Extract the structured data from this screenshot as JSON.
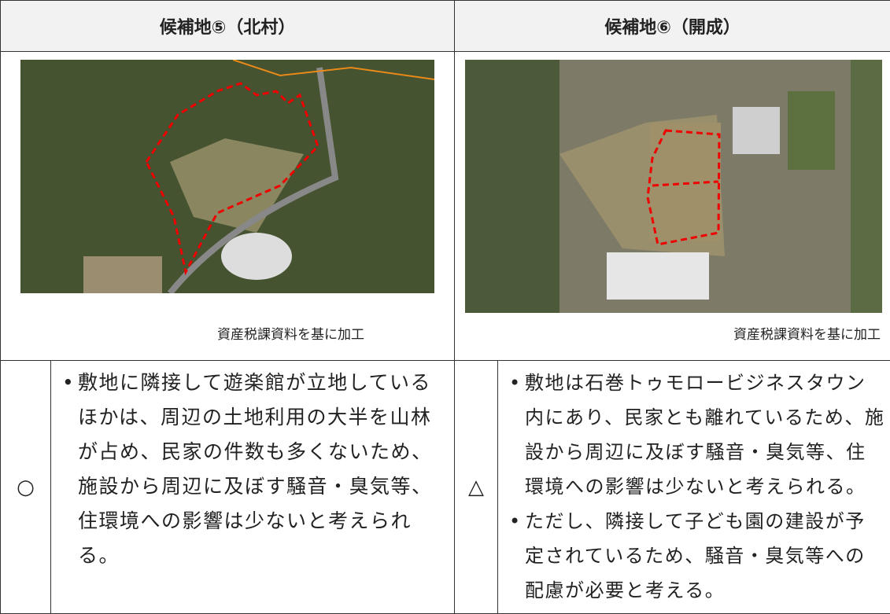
{
  "header": {
    "left": "候補地⑤（北村）",
    "right": "候補地⑥（開成）"
  },
  "captions": {
    "left": "資産税課資料を基に加工",
    "right": "資産税課資料を基に加工"
  },
  "left": {
    "rating": "○",
    "bullets": [
      "敷地に隣接して遊楽館が立地しているほかは、周辺の土地利用の大半を山林が占め、民家の件数も多くないため、施設から周辺に及ぼす騒音・臭気等、住環境への影響は少ないと考えられる。"
    ]
  },
  "right": {
    "rating": "△",
    "bullets": [
      "敷地は石巻トゥモロービジネスタウン内にあり、民家とも離れているため、施設から周辺に及ぼす騒音・臭気等、住環境への影響は少ないと考えられる。",
      "ただし、隣接して子ども園の建設が予定されているため、騒音・臭気等への配慮が必要と考える。"
    ]
  }
}
